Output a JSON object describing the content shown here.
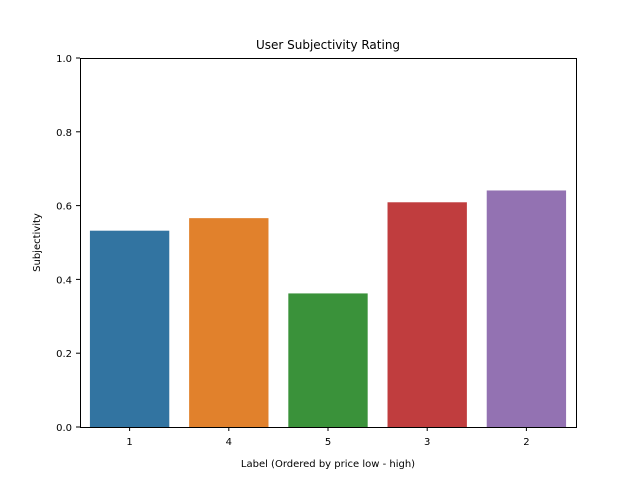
{
  "chart_data": {
    "type": "bar",
    "title": "User Subjectivity Rating",
    "xlabel": "Label (Ordered by price low - high)",
    "ylabel": "Subjectivity",
    "categories": [
      "1",
      "4",
      "5",
      "3",
      "2"
    ],
    "values": [
      0.532,
      0.566,
      0.362,
      0.609,
      0.641
    ],
    "colors": [
      "#3274a1",
      "#e1812c",
      "#3a923a",
      "#c03d3e",
      "#9372b2"
    ],
    "ylim": [
      0,
      1.0
    ],
    "yticks": [
      "0.0",
      "0.2",
      "0.4",
      "0.6",
      "0.8",
      "1.0"
    ],
    "grid": false,
    "legend": "none"
  }
}
